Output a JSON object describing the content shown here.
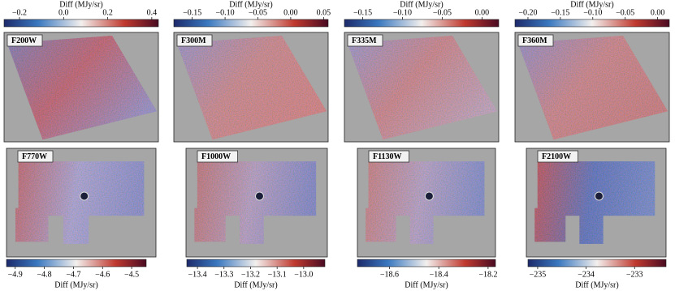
{
  "chart_data": [
    {
      "type": "image",
      "label": "F200W",
      "colorbar_label": "Diff (MJy/sr)",
      "clim": [
        -0.27,
        0.43
      ],
      "cticks": [
        {
          "value": -0.2,
          "label": "−0.2"
        },
        {
          "value": 0,
          "label": "0.0"
        },
        {
          "value": 0.2,
          "label": "0.2"
        },
        {
          "value": 0.4,
          "label": "0.4"
        }
      ]
    },
    {
      "type": "image",
      "label": "F300M",
      "colorbar_label": "Diff (MJy/sr)",
      "clim": [
        -0.178,
        0.057
      ],
      "cticks": [
        {
          "value": -0.15,
          "label": "−0.15"
        },
        {
          "value": -0.1,
          "label": "−0.10"
        },
        {
          "value": -0.05,
          "label": "−0.05"
        },
        {
          "value": 0,
          "label": "0.00"
        },
        0.05
      ]
    },
    {
      "type": "image",
      "label": "F335M",
      "colorbar_label": "Diff (MJy/sr)",
      "clim": [
        -0.173,
        0.021
      ],
      "cticks": [
        {
          "value": -0.15,
          "label": "−0.15"
        },
        {
          "value": -0.1,
          "label": "−0.10"
        },
        {
          "value": -0.05,
          "label": "−0.05"
        },
        {
          "value": 0,
          "label": "0.00"
        }
      ]
    },
    {
      "type": "image",
      "label": "F360M",
      "colorbar_label": "Diff (MJy/sr)",
      "clim": [
        -0.22,
        0.018
      ],
      "cticks": [
        {
          "value": -0.2,
          "label": "−0.20"
        },
        {
          "value": -0.15,
          "label": "−0.15"
        },
        {
          "value": -0.1,
          "label": "−0.10"
        },
        {
          "value": -0.05,
          "label": "−0.05"
        },
        {
          "value": 0,
          "label": "0.00"
        }
      ]
    },
    {
      "type": "image",
      "label": "F770W",
      "colorbar_label": "Diff (MJy/sr)",
      "clim": [
        -4.93,
        -4.45
      ],
      "cticks": [
        {
          "value": -4.9,
          "label": "−4.9"
        },
        {
          "value": -4.8,
          "label": "−4.8"
        },
        {
          "value": -4.7,
          "label": "−4.7"
        },
        {
          "value": -4.6,
          "label": "−4.6"
        },
        {
          "value": -4.5,
          "label": "−4.5"
        }
      ]
    },
    {
      "type": "image",
      "label": "F1000W",
      "colorbar_label": "Diff (MJy/sr)",
      "clim": [
        -13.44,
        -12.92
      ],
      "cticks": [
        {
          "value": -13.4,
          "label": "−13.4"
        },
        {
          "value": -13.3,
          "label": "−13.3"
        },
        {
          "value": -13.2,
          "label": "−13.2"
        },
        {
          "value": -13.1,
          "label": "−13.1"
        },
        {
          "value": -13.0,
          "label": "−13.0"
        }
      ]
    },
    {
      "type": "image",
      "label": "F1130W",
      "colorbar_label": "Diff (MJy/sr)",
      "clim": [
        -18.73,
        -18.17
      ],
      "cticks": [
        {
          "value": -18.6,
          "label": "−18.6"
        },
        {
          "value": -18.4,
          "label": "−18.4"
        },
        {
          "value": -18.2,
          "label": "−18.2"
        }
      ]
    },
    {
      "type": "image",
      "label": "F2100W",
      "colorbar_label": "Diff (MJy/sr)",
      "clim": [
        -235.2,
        -232.35
      ],
      "cticks": [
        {
          "value": -235,
          "label": "−235"
        },
        {
          "value": -234,
          "label": "−234"
        },
        {
          "value": -233,
          "label": "−233"
        }
      ]
    }
  ]
}
